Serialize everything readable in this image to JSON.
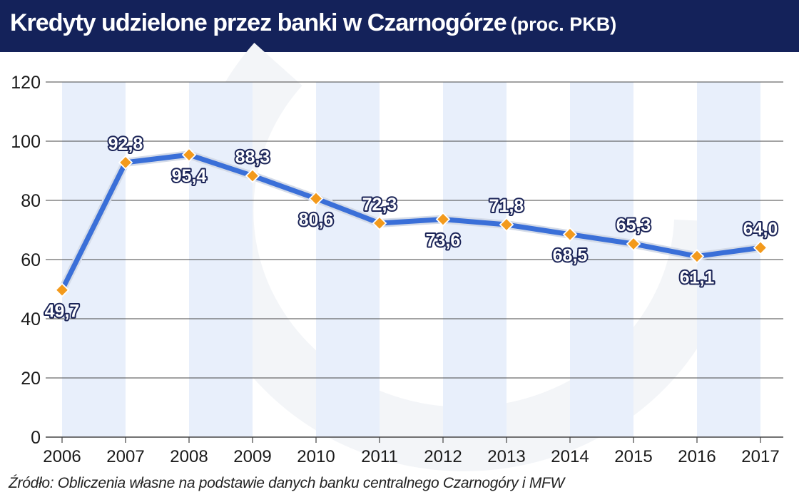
{
  "header": {
    "title": "Kredyty udzielone przez banki w Czarnogórze",
    "subtitle": "(proc. PKB)",
    "background": "#14225a"
  },
  "source": "Źródło: Obliczenia własne na podstawie danych banku centralnego Czarnogóry i MFW",
  "chart_data": {
    "type": "line",
    "categories": [
      "2006",
      "2007",
      "2008",
      "2009",
      "2010",
      "2011",
      "2012",
      "2013",
      "2014",
      "2015",
      "2016",
      "2017"
    ],
    "series": [
      {
        "values": [
          49.7,
          92.8,
          95.4,
          88.3,
          80.6,
          72.3,
          73.6,
          71.8,
          68.5,
          65.3,
          61.1,
          64.0
        ],
        "labels": [
          "49,7",
          "92,8",
          "95,4",
          "88,3",
          "80,6",
          "72,3",
          "73,6",
          "71,8",
          "68,5",
          "65,3",
          "61,1",
          "64,0"
        ],
        "label_positions": [
          "below",
          "above",
          "below",
          "above",
          "below",
          "above",
          "below",
          "above",
          "below",
          "above",
          "below",
          "above"
        ]
      }
    ],
    "ylim": [
      0,
      120
    ],
    "yticks": [
      0,
      20,
      40,
      60,
      80,
      100,
      120
    ],
    "xlabel": "",
    "ylabel": "",
    "grid": true,
    "legend": "none",
    "colors": {
      "line": "#3a6fd8",
      "line_outline": "#d4dbe8",
      "marker": "#f39a1c",
      "marker_outline": "#ffffff",
      "band": "#e8effb",
      "label_text": "#ffffff",
      "label_outline": "#1c2558",
      "grid": "#444444"
    }
  }
}
